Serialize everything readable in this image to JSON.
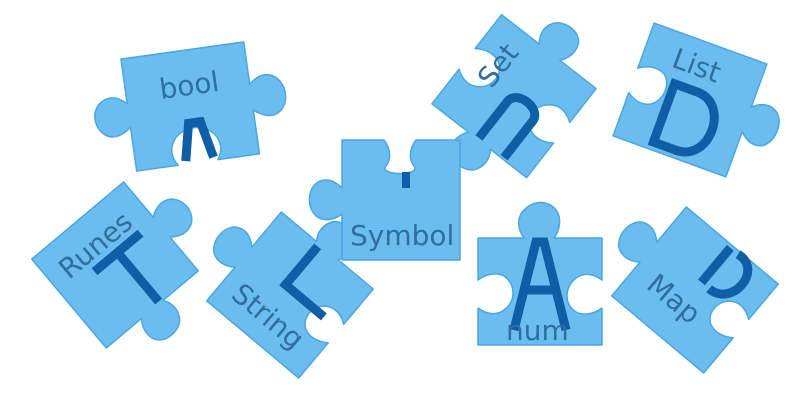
{
  "colors": {
    "piece_fill": "#6bbdf0",
    "piece_stroke": "#4aa7e0",
    "glyph": "#0e5fa6",
    "label": "#2f6f9e",
    "background": "#ffffff"
  },
  "pieces": [
    {
      "id": "bool",
      "label": "bool",
      "glyph": "A"
    },
    {
      "id": "set",
      "label": "Set",
      "glyph": "U"
    },
    {
      "id": "list",
      "label": "List",
      "glyph": "D"
    },
    {
      "id": "runes",
      "label": "Runes",
      "glyph": "T"
    },
    {
      "id": "string",
      "label": "String",
      "glyph": "L"
    },
    {
      "id": "symbol",
      "label": "Symbol",
      "glyph": "I"
    },
    {
      "id": "num",
      "label": "num",
      "glyph": "A"
    },
    {
      "id": "map",
      "label": "Map",
      "glyph": "ɔ"
    }
  ]
}
